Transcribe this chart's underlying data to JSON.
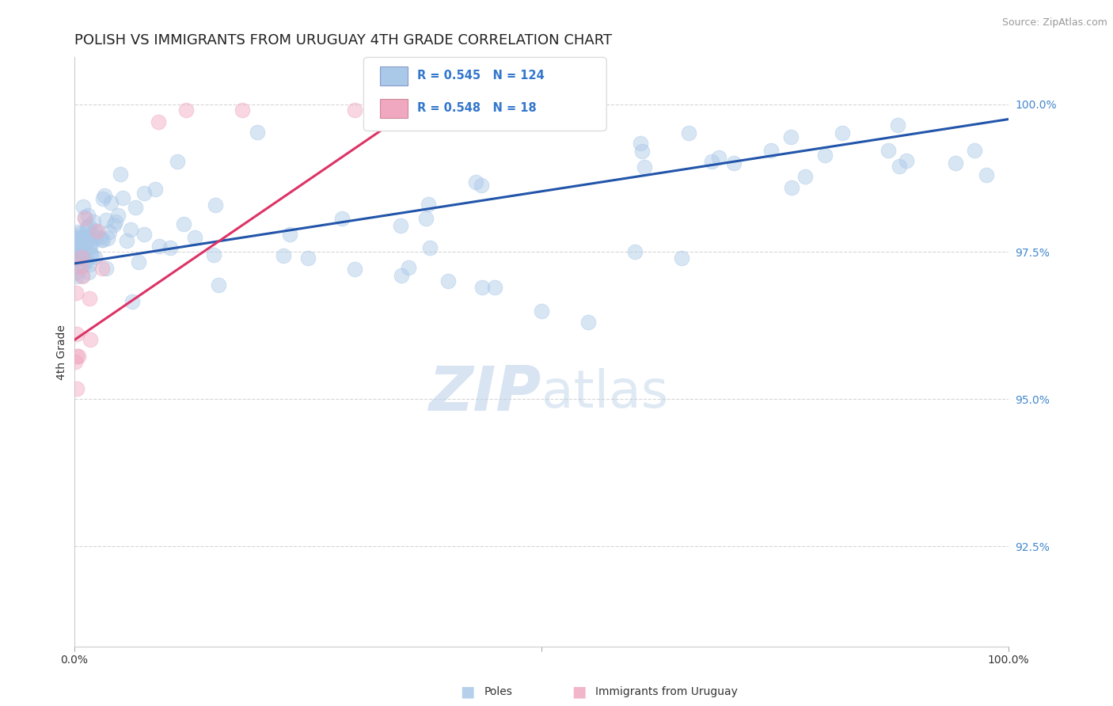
{
  "title": "POLISH VS IMMIGRANTS FROM URUGUAY 4TH GRADE CORRELATION CHART",
  "source": "Source: ZipAtlas.com",
  "ylabel": "4th Grade",
  "watermark": "ZIPatlas",
  "x_min": 0.0,
  "x_max": 1.0,
  "y_min": 0.908,
  "y_max": 1.008,
  "yticks": [
    0.925,
    0.95,
    0.975,
    1.0
  ],
  "ytick_labels": [
    "92.5%",
    "95.0%",
    "97.5%",
    "100.0%"
  ],
  "blue_R": 0.545,
  "blue_N": 124,
  "pink_R": 0.548,
  "pink_N": 18,
  "blue_color": "#aac8e8",
  "pink_color": "#f0a8c0",
  "blue_line_color": "#2255aa",
  "pink_line_color": "#dd3366",
  "blue_line_x0": 0.0,
  "blue_line_y0": 0.973,
  "blue_line_x1": 1.0,
  "blue_line_y1": 0.9975,
  "pink_line_x0": 0.0,
  "pink_line_y0": 0.96,
  "pink_line_x1": 0.36,
  "pink_line_y1": 0.999,
  "scatter_size": 180,
  "scatter_alpha": 0.45,
  "title_fontsize": 13,
  "axis_label_fontsize": 10,
  "tick_fontsize": 10,
  "watermark_fontsize": 56,
  "watermark_color": "#c8dcf0",
  "background_color": "#ffffff",
  "grid_color": "#bbbbbb",
  "grid_alpha": 0.6
}
